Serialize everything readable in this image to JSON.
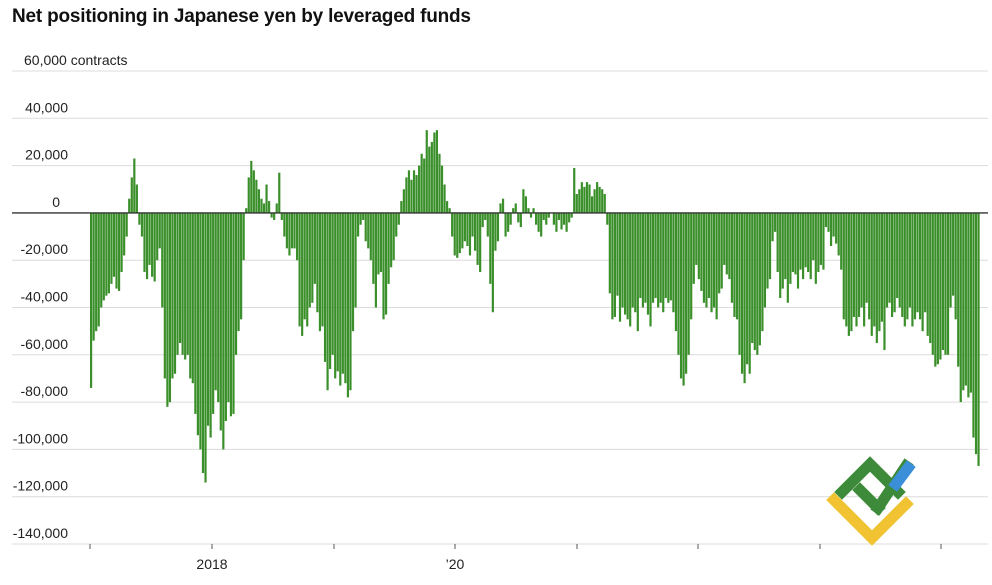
{
  "chart_data": {
    "type": "bar",
    "title": "Net positioning in Japanese yen by leveraged funds",
    "ylabel": "",
    "xlabel": "",
    "y_unit": "contracts",
    "ylim": [
      -140000,
      60000
    ],
    "y_ticks": [
      60000,
      40000,
      20000,
      0,
      -20000,
      -40000,
      -60000,
      -80000,
      -100000,
      -120000,
      -140000
    ],
    "y_tick_labels": [
      "60,000 contracts",
      "40,000",
      "20,000",
      "0",
      "-20,000",
      "-40,000",
      "-60,000",
      "-80,000",
      "-100,000",
      "-120,000",
      "-140,000"
    ],
    "x_tick_labels": [
      "2018",
      "’20"
    ],
    "grid": true,
    "frequency": "weekly",
    "series": [
      {
        "values": [
          -74000,
          -54000,
          -50000,
          -48000,
          -40000,
          -37000,
          -35000,
          -34000,
          -30000,
          -27000,
          -32000,
          -33000,
          -25000,
          -18000,
          -10000,
          6000,
          15000,
          23000,
          12000,
          -5000,
          -10000,
          -25000,
          -28000,
          -22000,
          -27000,
          -29000,
          -20000,
          -15000,
          -40000,
          -70000,
          -82000,
          -80000,
          -70000,
          -68000,
          -60000,
          -55000,
          -60000,
          -62000,
          -60000,
          -70000,
          -72000,
          -85000,
          -94000,
          -100000,
          -110000,
          -114000,
          -90000,
          -95000,
          -85000,
          -75000,
          -80000,
          -92000,
          -100000,
          -88000,
          -80000,
          -86000,
          -85000,
          -60000,
          -50000,
          -45000,
          -20000,
          2000,
          15000,
          22000,
          18000,
          14000,
          10000,
          6000,
          4000,
          12000,
          5000,
          -2000,
          -3000,
          4000,
          17000,
          -3000,
          -10000,
          -15000,
          -18000,
          -15000,
          -15000,
          -20000,
          -48000,
          -52000,
          -45000,
          -48000,
          -40000,
          -38000,
          -30000,
          -42000,
          -50000,
          -48000,
          -63000,
          -75000,
          -66000,
          -60000,
          -70000,
          -67000,
          -73000,
          -68000,
          -72000,
          -78000,
          -75000,
          -50000,
          -40000,
          -10000,
          -5000,
          -3000,
          -12000,
          -15000,
          -20000,
          -30000,
          -40000,
          -26000,
          -25000,
          -45000,
          -43000,
          -30000,
          -23000,
          -20000,
          -10000,
          -5000,
          5000,
          10000,
          15000,
          18000,
          14000,
          18000,
          16000,
          20000,
          25000,
          23000,
          35000,
          28000,
          30000,
          34000,
          35000,
          25000,
          20000,
          12000,
          5000,
          2000,
          -10000,
          -18000,
          -19000,
          -17000,
          -15000,
          -12000,
          -14000,
          -18000,
          -10000,
          -16000,
          -22000,
          -25000,
          -6000,
          -3000,
          -10000,
          -30000,
          -42000,
          -16000,
          -12000,
          4000,
          6000,
          -10000,
          -8000,
          -5000,
          2000,
          4000,
          -4000,
          -6000,
          10000,
          7000,
          2000,
          -2000,
          2000,
          -5000,
          -8000,
          -10000,
          -3000,
          -5000,
          -2000,
          0,
          -5000,
          -8000,
          -3000,
          -7000,
          -5000,
          -8000,
          -4000,
          -2000,
          19000,
          8000,
          10000,
          13000,
          11000,
          13000,
          12000,
          7000,
          10000,
          13000,
          11000,
          10000,
          8000,
          -5000,
          -34000,
          -45000,
          -44000,
          -35000,
          -46000,
          -40000,
          -43000,
          -45000,
          -48000,
          -40000,
          -42000,
          -50000,
          -36000,
          -40000,
          -38000,
          -43000,
          -48000,
          -38000,
          -36000,
          -40000,
          -38000,
          -42000,
          -36000,
          -38000,
          -37000,
          -42000,
          -50000,
          -60000,
          -70000,
          -73000,
          -68000,
          -60000,
          -45000,
          -30000,
          -22000,
          -28000,
          -33000,
          -38000,
          -40000,
          -36000,
          -42000,
          -40000,
          -45000,
          -34000,
          -32000,
          -22000,
          -26000,
          -28000,
          -38000,
          -44000,
          -45000,
          -60000,
          -68000,
          -72000,
          -64000,
          -68000,
          -55000,
          -58000,
          -60000,
          -56000,
          -50000,
          -40000,
          -32000,
          -28000,
          -12000,
          -8000,
          -25000,
          -36000,
          -32000,
          -28000,
          -38000,
          -30000,
          -25000,
          -26000,
          -32000,
          -24000,
          -28000,
          -23000,
          -25000,
          -28000,
          -20000,
          -30000,
          -25000,
          -22000,
          -24000,
          -6000,
          -8000,
          -14000,
          -10000,
          -13000,
          -18000,
          -24000,
          -45000,
          -48000,
          -52000,
          -50000,
          -44000,
          -48000,
          -44000,
          -40000,
          -48000,
          -38000,
          -45000,
          -52000,
          -48000,
          -55000,
          -50000,
          -46000,
          -58000,
          -40000,
          -38000,
          -44000,
          -42000,
          -36000,
          -40000,
          -44000,
          -48000,
          -45000,
          -40000,
          -48000,
          -45000,
          -42000,
          -45000,
          -50000,
          -42000,
          -52000,
          -55000,
          -60000,
          -65000,
          -64000,
          -62000,
          -58000,
          -60000,
          -60000,
          -40000,
          -35000,
          -45000,
          -65000,
          -80000,
          -75000,
          -73000,
          -78000,
          -76000,
          -95000,
          -102000,
          -107000
        ]
      }
    ]
  }
}
